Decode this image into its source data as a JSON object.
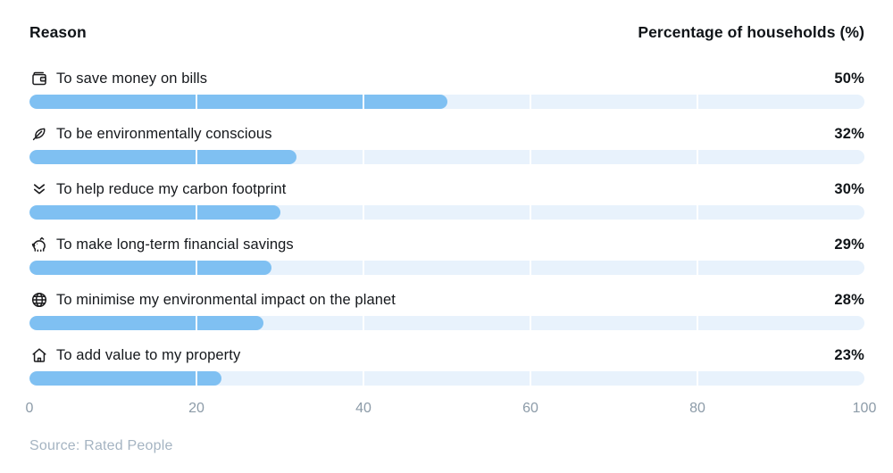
{
  "header": {
    "left": "Reason",
    "right": "Percentage of households (%)"
  },
  "chart_data": {
    "type": "bar",
    "orientation": "horizontal",
    "title": "",
    "xlabel": "Percentage of households (%)",
    "ylabel": "Reason",
    "categories": [
      "To save money on bills",
      "To be environmentally conscious",
      "To help reduce my carbon footprint",
      "To make long-term financial savings",
      "To minimise my environmental impact on the planet",
      "To add value to my property"
    ],
    "values": [
      50,
      32,
      30,
      29,
      28,
      23
    ],
    "value_labels": [
      "50%",
      "32%",
      "30%",
      "29%",
      "28%",
      "23%"
    ],
    "icons": [
      "wallet-icon",
      "leaf-icon",
      "chevrons-down-icon",
      "piggy-bank-icon",
      "globe-icon",
      "home-icon"
    ],
    "x_ticks": [
      0,
      20,
      40,
      60,
      80,
      100
    ],
    "xlim": [
      0,
      100
    ],
    "grid": "vertical-white-lines-over-bars",
    "legend": "none",
    "bar_color": "#7fc0f2",
    "track_color": "#e8f2fc",
    "axis_label_color": "#8c9ba8"
  },
  "source": {
    "text": "Source: Rated People"
  }
}
